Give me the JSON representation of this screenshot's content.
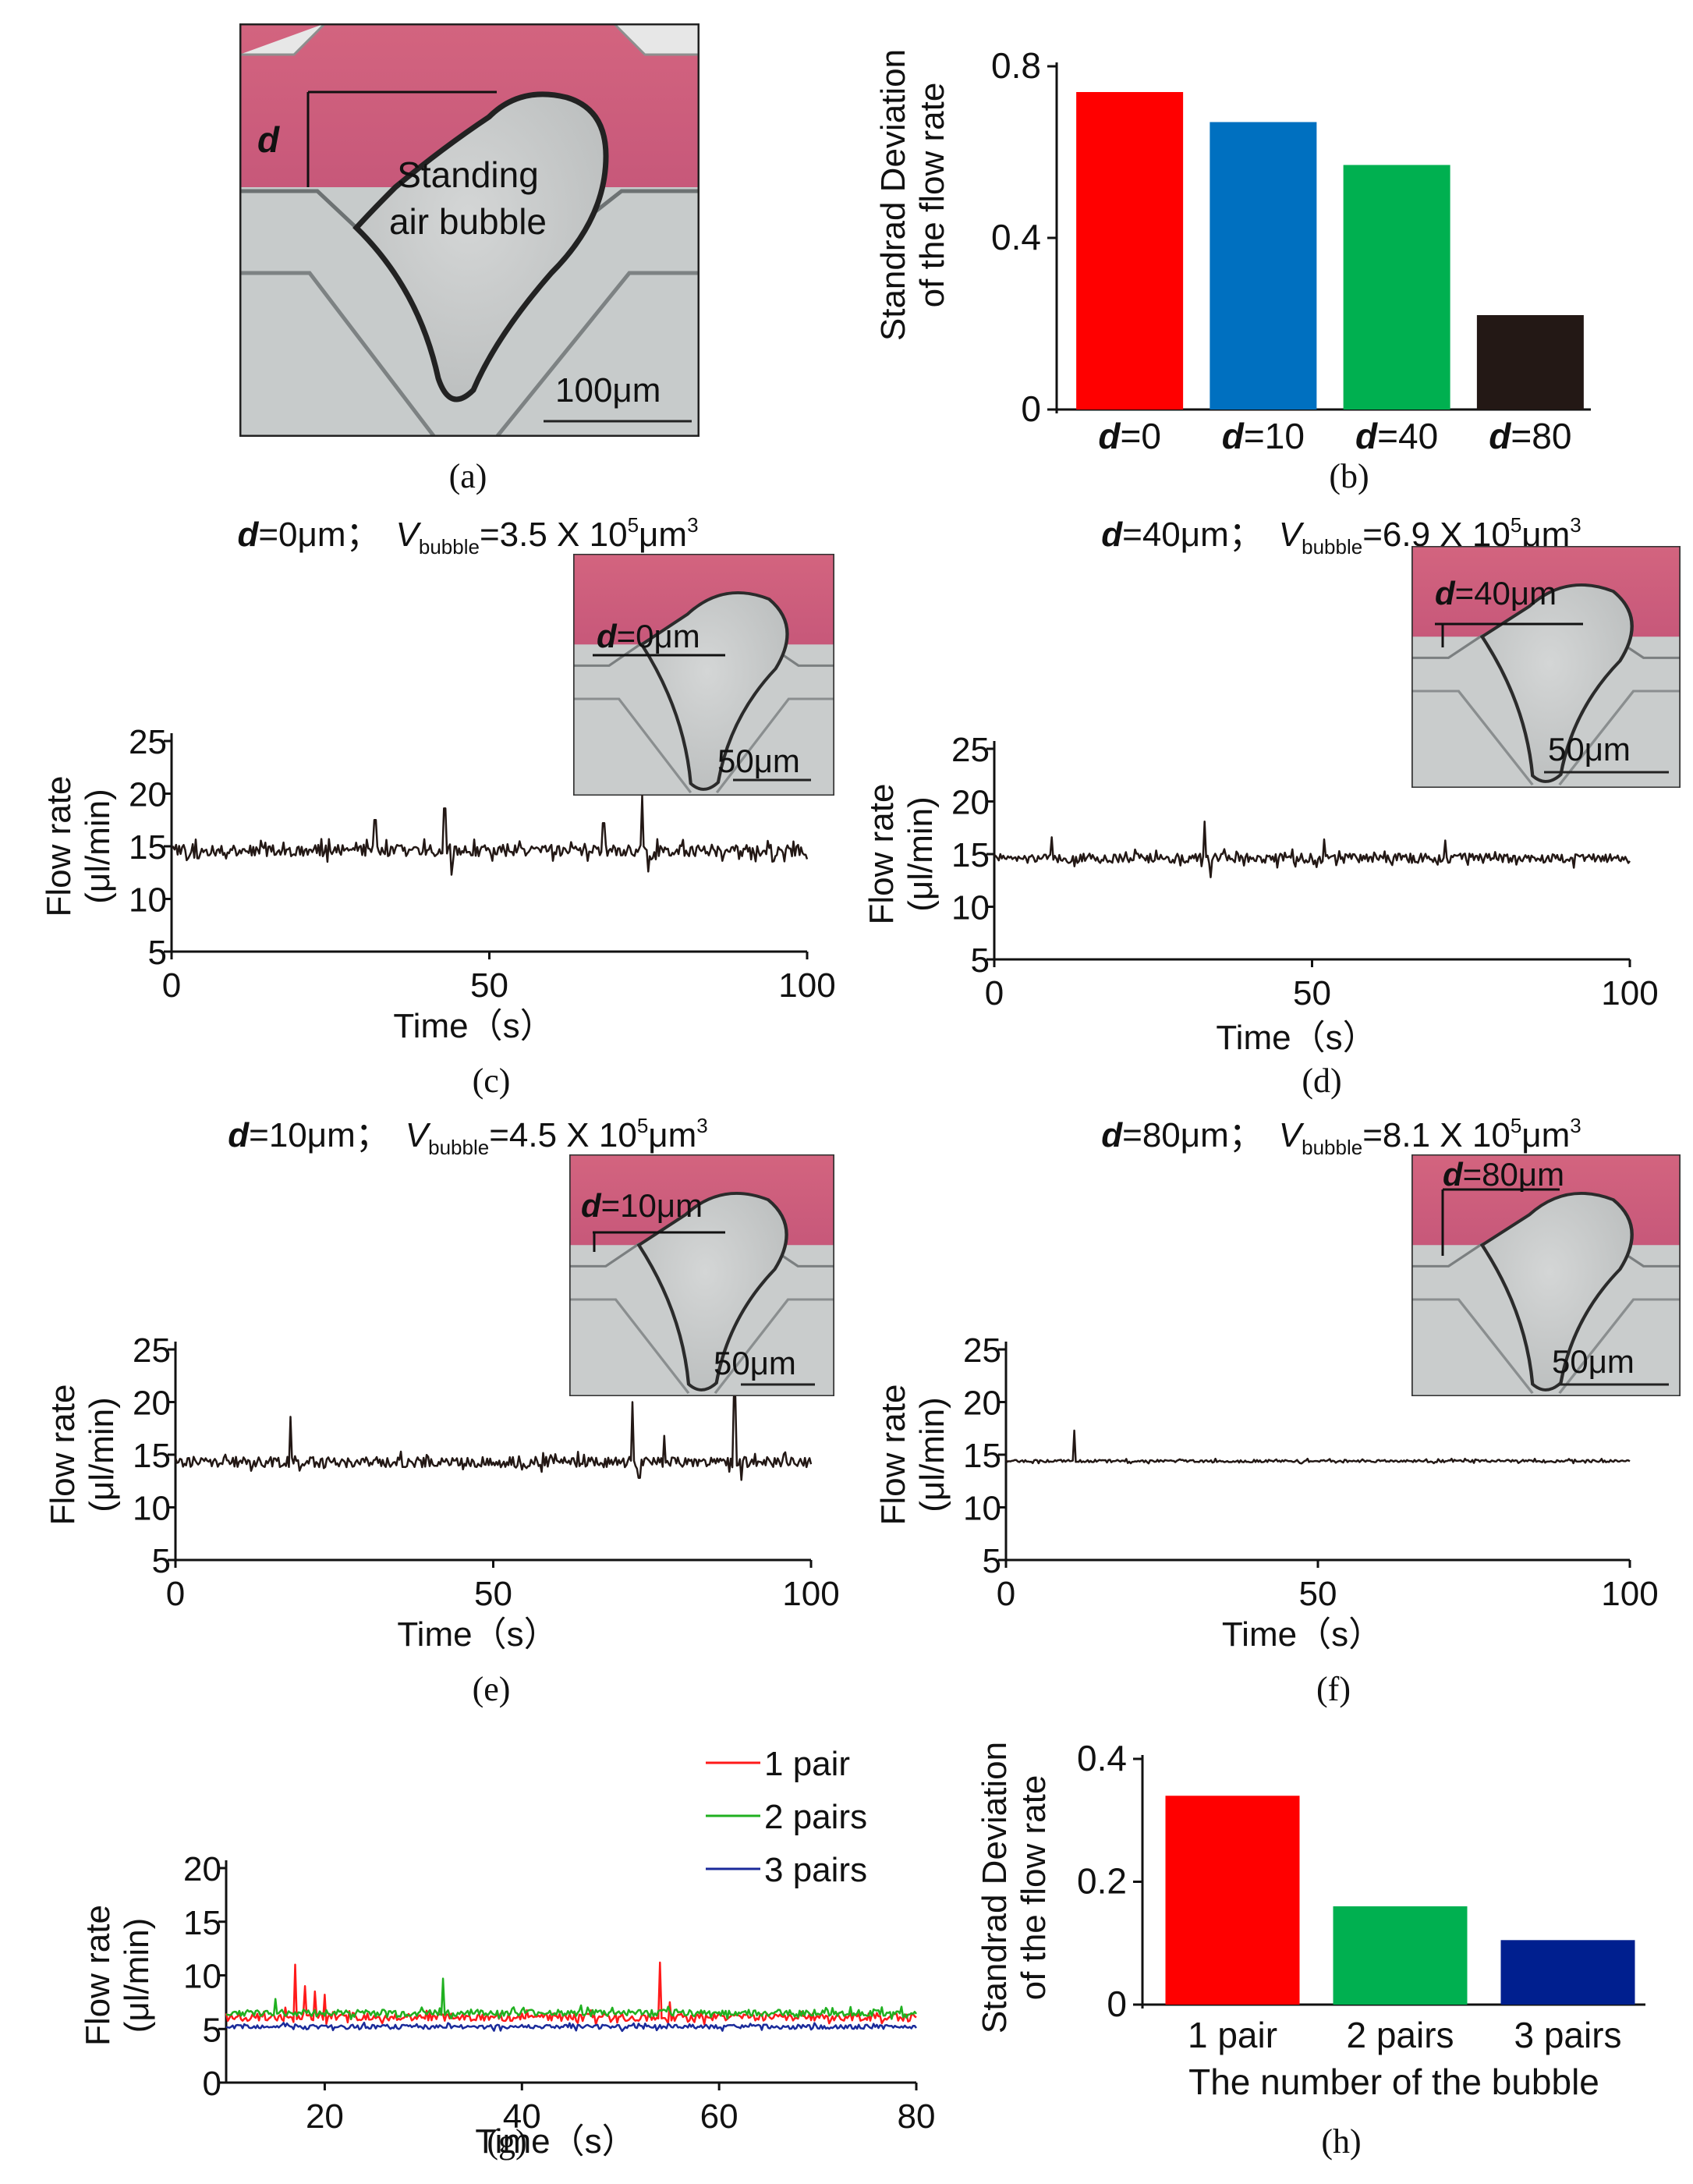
{
  "figure": {
    "captions": [
      "(a)",
      "(b)",
      "(c)",
      "(d)",
      "(e)",
      "(f)",
      "(g)",
      "(h)"
    ]
  },
  "panel_a": {
    "d_label": "d",
    "bubble_line1": "Standing",
    "bubble_line2": "air bubble",
    "scale_bar": "100μm"
  },
  "insets": [
    {
      "d_text": "=0μm",
      "scale": "50μm"
    },
    {
      "d_text": "=40μm",
      "scale": "50μm"
    },
    {
      "d_text": "=10μm",
      "scale": "50μm"
    },
    {
      "d_text": "=80μm",
      "scale": "50μm"
    }
  ],
  "titles": [
    {
      "d": "=0μm；",
      "vol": "=3.5 X 10",
      "exp": "5",
      "unit": "μm",
      "unit_exp": "3"
    },
    {
      "d": "=40μm；",
      "vol": "=6.9 X 10",
      "exp": "5",
      "unit": "μm",
      "unit_exp": "3"
    },
    {
      "d": "=10μm；",
      "vol": "=4.5 X 10",
      "exp": "5",
      "unit": "μm",
      "unit_exp": "3"
    },
    {
      "d": "=80μm；",
      "vol": "=8.1 X 10",
      "exp": "5",
      "unit": "μm",
      "unit_exp": "3"
    }
  ],
  "symbols": {
    "d": "d",
    "V": "V",
    "bubble": "bubble"
  },
  "chart_data": [
    {
      "id": "b",
      "type": "bar",
      "ylabel": [
        "Standrad Deviation",
        "of the flow rate"
      ],
      "ylim": [
        0,
        0.8
      ],
      "yticks": [
        "0",
        "0.4",
        "0.8"
      ],
      "categories": [
        {
          "sym": "d",
          "rest": "=0"
        },
        {
          "sym": "d",
          "rest": "=10"
        },
        {
          "sym": "d",
          "rest": "=40"
        },
        {
          "sym": "d",
          "rest": "=80"
        }
      ],
      "values": [
        0.74,
        0.67,
        0.57,
        0.22
      ],
      "colors": [
        "#ff0000",
        "#0070c0",
        "#00b050",
        "#231815"
      ]
    },
    {
      "id": "c",
      "type": "line",
      "xlabel": "Time（s）",
      "ylabel": [
        "Flow rate",
        "(μl/min)"
      ],
      "xlim": [
        0,
        100
      ],
      "ylim": [
        5,
        25
      ],
      "xticks": [
        "0",
        "50",
        "100"
      ],
      "yticks": [
        "5",
        "10",
        "15",
        "20",
        "25"
      ],
      "baseline": 14.6,
      "noise": 0.55,
      "spikes": [
        [
          32,
          17.5
        ],
        [
          43,
          18.6
        ],
        [
          44,
          12.3
        ],
        [
          74,
          19.8
        ],
        [
          75,
          12.6
        ],
        [
          68,
          17.2
        ]
      ],
      "color": "#231815"
    },
    {
      "id": "d",
      "type": "line",
      "xlabel": "Time（s）",
      "ylabel": [
        "Flow rate",
        "(μl/min)"
      ],
      "xlim": [
        0,
        100
      ],
      "ylim": [
        5,
        25
      ],
      "xticks": [
        "0",
        "50",
        "100"
      ],
      "yticks": [
        "5",
        "10",
        "15",
        "20",
        "25"
      ],
      "baseline": 14.6,
      "noise": 0.45,
      "spikes": [
        [
          9,
          16.6
        ],
        [
          33,
          18.1
        ],
        [
          34,
          12.8
        ],
        [
          52,
          16.4
        ],
        [
          71,
          16.3
        ]
      ],
      "color": "#231815"
    },
    {
      "id": "e",
      "type": "line",
      "xlabel": "Time（s）",
      "ylabel": [
        "Flow rate",
        "(μl/min)"
      ],
      "xlim": [
        0,
        100
      ],
      "ylim": [
        5,
        25
      ],
      "xticks": [
        "0",
        "50",
        "100"
      ],
      "yticks": [
        "5",
        "10",
        "15",
        "20",
        "25"
      ],
      "baseline": 14.3,
      "noise": 0.5,
      "spikes": [
        [
          18,
          18.6
        ],
        [
          72,
          20.0
        ],
        [
          73,
          12.8
        ],
        [
          88,
          20.5
        ],
        [
          89,
          12.6
        ],
        [
          77,
          16.8
        ]
      ],
      "color": "#231815"
    },
    {
      "id": "f",
      "type": "line",
      "xlabel": "Time（s）",
      "ylabel": [
        "Flow rate",
        "(μl/min)"
      ],
      "xlim": [
        0,
        100
      ],
      "ylim": [
        5,
        25
      ],
      "xticks": [
        "0",
        "50",
        "100"
      ],
      "yticks": [
        "5",
        "10",
        "15",
        "20",
        "25"
      ],
      "baseline": 14.4,
      "noise": 0.12,
      "spikes": [
        [
          11,
          17.3
        ]
      ],
      "color": "#231815"
    },
    {
      "id": "g",
      "type": "line",
      "xlabel": "Time（s）",
      "ylabel": [
        "Flow rate",
        "(μl/min)"
      ],
      "xlim": [
        10,
        80
      ],
      "ylim": [
        0,
        20
      ],
      "xticks": [
        "20",
        "40",
        "60",
        "80"
      ],
      "yticks": [
        "0",
        "5",
        "10",
        "15",
        "20"
      ],
      "series": [
        {
          "name": "1 pair",
          "color": "#ff1a1a",
          "baseline": 6.1,
          "noise": 0.35,
          "spikes": [
            [
              16,
              7.0
            ],
            [
              17,
              11.0
            ],
            [
              18,
              9.0
            ],
            [
              19,
              8.5
            ],
            [
              20,
              8.2
            ],
            [
              54,
              11.2
            ],
            [
              55,
              7.5
            ]
          ]
        },
        {
          "name": "2 pairs",
          "color": "#20b020",
          "baseline": 6.5,
          "noise": 0.3,
          "spikes": [
            [
              15,
              7.8
            ],
            [
              32,
              9.7
            ],
            [
              46,
              7.2
            ]
          ]
        },
        {
          "name": "3 pairs",
          "color": "#1a2a9a",
          "baseline": 5.2,
          "noise": 0.2,
          "spikes": []
        }
      ]
    },
    {
      "id": "h",
      "type": "bar",
      "xlabel": "The number of the bubble",
      "ylabel": [
        "Standrad Deviation",
        "of the flow rate"
      ],
      "ylim": [
        0,
        0.4
      ],
      "yticks": [
        "0",
        "0.2",
        "0.4"
      ],
      "categories": [
        "1 pair",
        "2 pairs",
        "3 pairs"
      ],
      "values": [
        0.34,
        0.16,
        0.105
      ],
      "colors": [
        "#ff0000",
        "#00b050",
        "#001f8f"
      ]
    }
  ]
}
